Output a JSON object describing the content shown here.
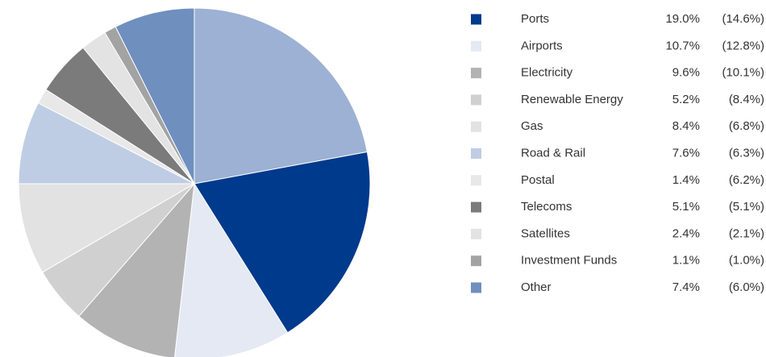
{
  "chart_data": {
    "type": "pie",
    "categories": [
      null,
      "Ports",
      "Airports",
      "Electricity",
      "Renewable Energy",
      "Gas",
      "Road & Rail",
      "Postal",
      "Telecoms",
      "Satellites",
      "Investment Funds",
      "Other"
    ],
    "colors": [
      "#9cb1d3",
      "#003a8c",
      "#e4e9f3",
      "#b3b3b3",
      "#d0d0d0",
      "#e2e2e2",
      "#bfcde4",
      "#e8e8e8",
      "#7b7b7b",
      "#e3e3e3",
      "#a3a3a3",
      "#6f8fbf"
    ],
    "series": [
      {
        "values": [
          22.1,
          19.0,
          10.7,
          9.6,
          5.2,
          8.4,
          7.6,
          1.4,
          5.1,
          2.4,
          1.1,
          7.4
        ],
        "value_labels": [
          null,
          "19.0%",
          "10.7%",
          "9.6%",
          "5.2%",
          "8.4%",
          "7.6%",
          "1.4%",
          "5.1%",
          "2.4%",
          "1.1%",
          "7.4%"
        ]
      },
      {
        "values": [
          null,
          14.6,
          12.8,
          10.1,
          8.4,
          6.8,
          6.3,
          6.2,
          5.1,
          2.1,
          1.0,
          6.0
        ],
        "value_labels": [
          null,
          "(14.6%)",
          "(12.8%)",
          "(10.1%)",
          "(8.4%)",
          "(6.8%)",
          "(6.3%)",
          "(6.2%)",
          "(5.1%)",
          "(2.1%)",
          "(1.0%)",
          "(6.0%)"
        ]
      }
    ]
  }
}
